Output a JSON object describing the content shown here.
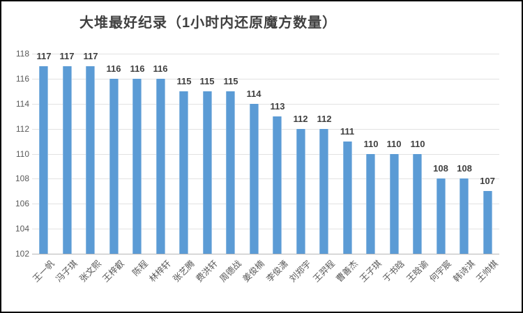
{
  "title": "大堆最好纪录（1小时内还原魔方数量）",
  "chart_data": {
    "type": "bar",
    "title": "大堆最好纪录（1小时内还原魔方数量）",
    "categories": [
      "王一帆",
      "冯子琪",
      "张文熙",
      "王梓叡",
      "陈程",
      "林梓轩",
      "张艺腾",
      "费洪轩",
      "周德战",
      "姜俊楠",
      "李俊潇",
      "刘郑宇",
      "王羿程",
      "曹善杰",
      "王子琪",
      "于书晗",
      "王晗谕",
      "何宇宸",
      "韩诗淇",
      "王帅棋"
    ],
    "values": [
      117,
      117,
      117,
      116,
      116,
      116,
      115,
      115,
      115,
      114,
      113,
      112,
      112,
      111,
      110,
      110,
      110,
      108,
      108,
      107
    ],
    "data_labels_shown": true,
    "xlabel": "",
    "ylabel": "",
    "ylim": [
      102,
      118
    ],
    "yticks": [
      102,
      104,
      106,
      108,
      110,
      112,
      114,
      116,
      118
    ],
    "grid": true,
    "legend_position": "none",
    "colors": {
      "bar": "#5b9bd5",
      "bar_edge_highlight": "#9dc3e6",
      "gridline": "#e2e2e2",
      "axis_line": "#b7b7b7",
      "title_text": "#3f3f3f",
      "data_label_text": "#404040",
      "tick_text": "#595959",
      "frame_border": "#000000",
      "background": "#ffffff"
    }
  }
}
